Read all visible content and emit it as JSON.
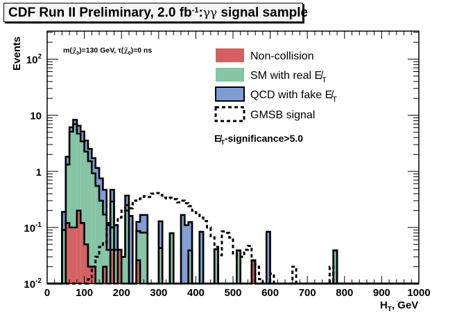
{
  "chart_data": {
    "type": "bar",
    "stacked": true,
    "title": {
      "main": "CDF Run II Preliminary, 2.0 fb",
      "sup": "-1",
      "sep": ":",
      "greek": "γγ",
      "rest": " signal sample"
    },
    "xlabel": "H",
    "xlabel_sub": "T",
    "xlabel_unit": ", GeV",
    "ylabel": "Events",
    "xlim": [
      0,
      1000
    ],
    "ylim": [
      0.01,
      316
    ],
    "yscale": "log",
    "bin_width": 10,
    "x_ticks": [
      "0",
      "100",
      "200",
      "300",
      "400",
      "500",
      "600",
      "700",
      "800",
      "900",
      "1000"
    ],
    "y_ticks": [
      {
        "base": "10",
        "exp": "-2",
        "v": 0.01
      },
      {
        "base": "10",
        "exp": "-1",
        "v": 0.1
      },
      {
        "base": "1",
        "exp": "",
        "v": 1
      },
      {
        "base": "10",
        "exp": "",
        "v": 10
      },
      {
        "base": "10",
        "exp": "2",
        "v": 100
      }
    ],
    "annotation": {
      "m": "m(",
      "chi": "χ̃",
      "sub": "0",
      "mid": ")=130 GeV, τ(",
      "end": ")=0 ns"
    },
    "cut_label": {
      "met": "E̸",
      "sub": "T",
      "rest": "-significance>5.0"
    },
    "legend_placement": "top-right",
    "series": [
      {
        "name": "Non-collision",
        "color": "#d26262",
        "style": "filled"
      },
      {
        "name": "SM with real E̸",
        "name_sub": "T",
        "color": "#85c4a5",
        "style": "filled"
      },
      {
        "name": "QCD with fake E̸",
        "name_sub": "T",
        "color": "#7e9dd4",
        "style": "filled"
      },
      {
        "name": "GMSB signal",
        "color": "#000000",
        "style": "dashed"
      }
    ],
    "background_bins": {
      "columns": [
        "bin_low",
        "Non-collision",
        "SM with real MET",
        "QCD with fake MET"
      ],
      "rows": [
        [
          40,
          0,
          0.09,
          0.1
        ],
        [
          50,
          0.12,
          1.2,
          0.5
        ],
        [
          60,
          0.1,
          5.0,
          1.0
        ],
        [
          70,
          0.1,
          6.8,
          1.4
        ],
        [
          80,
          0.2,
          4.5,
          1.8
        ],
        [
          90,
          0.12,
          3.3,
          1.7
        ],
        [
          100,
          0.05,
          2.2,
          1.3
        ],
        [
          110,
          0.02,
          1.5,
          1.0
        ],
        [
          120,
          0.02,
          0.9,
          0.8
        ],
        [
          130,
          0,
          0.55,
          0.6
        ],
        [
          140,
          0,
          0.3,
          0.45
        ],
        [
          150,
          0.02,
          0.15,
          0.3
        ],
        [
          160,
          0,
          0.04,
          0.08
        ],
        [
          170,
          0.04,
          0.25,
          0.18
        ],
        [
          180,
          0,
          0.04,
          0.07
        ],
        [
          190,
          0.04,
          0,
          0
        ],
        [
          200,
          0,
          0.03,
          0
        ],
        [
          210,
          0,
          0.2,
          0.17
        ],
        [
          220,
          0,
          0,
          0.16
        ],
        [
          240,
          0.026,
          0.06,
          0.04
        ],
        [
          250,
          0,
          0.081,
          0.086
        ],
        [
          260,
          0,
          0.081,
          0.086
        ],
        [
          300,
          0,
          0.043,
          0.086
        ],
        [
          330,
          0,
          0.079,
          0
        ],
        [
          360,
          0,
          0,
          0.167
        ],
        [
          370,
          0,
          0,
          0.11
        ],
        [
          380,
          0,
          0.039,
          0.086
        ],
        [
          410,
          0,
          0,
          0.084
        ],
        [
          450,
          0,
          0.041,
          0
        ],
        [
          510,
          0,
          0.039,
          0
        ],
        [
          550,
          0.026,
          0,
          0
        ],
        [
          590,
          0,
          0,
          0.084
        ],
        [
          770,
          0,
          0.039,
          0
        ]
      ]
    },
    "signal_bins": [
      [
        110,
        0.012
      ],
      [
        120,
        0.02
      ],
      [
        130,
        0.03
      ],
      [
        140,
        0.045
      ],
      [
        150,
        0.055
      ],
      [
        160,
        0.11
      ],
      [
        170,
        0.1
      ],
      [
        180,
        0.11
      ],
      [
        190,
        0.15
      ],
      [
        200,
        0.2
      ],
      [
        210,
        0.25
      ],
      [
        220,
        0.22
      ],
      [
        230,
        0.3
      ],
      [
        240,
        0.32
      ],
      [
        250,
        0.33
      ],
      [
        260,
        0.36
      ],
      [
        270,
        0.35
      ],
      [
        280,
        0.4
      ],
      [
        290,
        0.41
      ],
      [
        300,
        0.38
      ],
      [
        310,
        0.34
      ],
      [
        320,
        0.33
      ],
      [
        330,
        0.34
      ],
      [
        340,
        0.32
      ],
      [
        350,
        0.28
      ],
      [
        360,
        0.3
      ],
      [
        370,
        0.27
      ],
      [
        380,
        0.24
      ],
      [
        390,
        0.2
      ],
      [
        400,
        0.18
      ],
      [
        410,
        0.15
      ],
      [
        420,
        0.13
      ],
      [
        430,
        0.1
      ],
      [
        440,
        0.07
      ],
      [
        450,
        0.045
      ],
      [
        460,
        0.032
      ],
      [
        470,
        0.085
      ],
      [
        480,
        0.08
      ],
      [
        490,
        0.066
      ],
      [
        500,
        0.033
      ],
      [
        510,
        0.03
      ],
      [
        520,
        0.03
      ],
      [
        530,
        0.04
      ],
      [
        540,
        0.047
      ],
      [
        550,
        0.026
      ],
      [
        560,
        0.02
      ],
      [
        570,
        0.012
      ],
      [
        600,
        0.015
      ],
      [
        660,
        0.02
      ],
      [
        760,
        0.02
      ]
    ]
  }
}
